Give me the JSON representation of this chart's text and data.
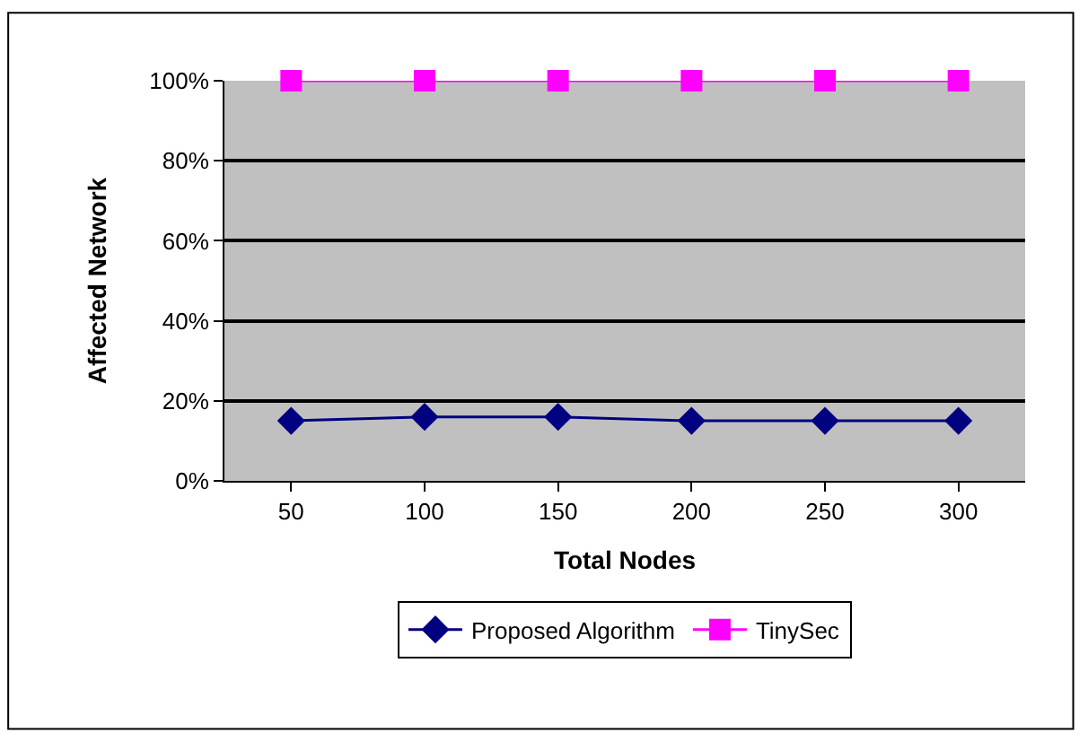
{
  "chart_data": {
    "type": "line",
    "xlabel": "Total Nodes",
    "ylabel": "Affected Network",
    "categories": [
      "50",
      "100",
      "150",
      "200",
      "250",
      "300"
    ],
    "series": [
      {
        "name": "Proposed Algorithm",
        "color": "#000080",
        "marker": "diamond",
        "values": [
          15,
          16,
          16,
          15,
          15,
          15
        ]
      },
      {
        "name": "TinySec",
        "color": "#ff00ff",
        "marker": "square",
        "values": [
          100,
          100,
          100,
          100,
          100,
          100
        ]
      }
    ],
    "ylim": [
      0,
      100
    ],
    "yticks": [
      {
        "value": 0,
        "label": "0%"
      },
      {
        "value": 20,
        "label": "20%"
      },
      {
        "value": 40,
        "label": "40%"
      },
      {
        "value": 60,
        "label": "60%"
      },
      {
        "value": 80,
        "label": "80%"
      },
      {
        "value": 100,
        "label": "100%"
      }
    ],
    "grid": "y",
    "legend": "bottom",
    "line_style": "solid"
  }
}
